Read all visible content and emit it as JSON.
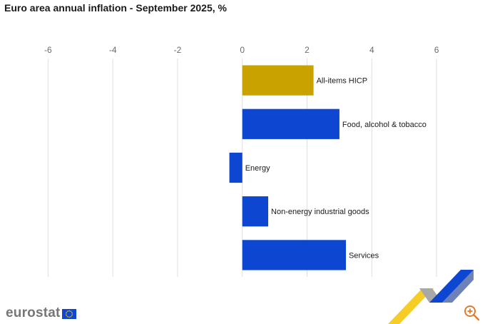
{
  "title": "Euro area annual inflation - September 2025, %",
  "brand": {
    "name": "eurostat",
    "flag_icon": "eu-flag-icon"
  },
  "zoom_icon": "zoom-in-icon",
  "colors": {
    "headline_bar": "#c9a200",
    "component_bar": "#0d47d1",
    "grid": "#e0e0e0",
    "deco_yellow": "#f5c400",
    "deco_blue": "#0d47d1",
    "deco_grey": "#a8a8a8",
    "zoom_icon": "#e07a30"
  },
  "chart_data": {
    "type": "bar",
    "orientation": "horizontal",
    "title": "Euro area annual inflation - September 2025, %",
    "xlabel": "",
    "ylabel": "",
    "xlim": [
      -7,
      7.1
    ],
    "x_ticks": [
      -6,
      -4,
      -2,
      0,
      2,
      4,
      6
    ],
    "x_tick_labels": [
      "-6",
      "-4",
      "-2",
      "0",
      "2",
      "4",
      "6"
    ],
    "x_axis_position": "top",
    "grid": true,
    "categories": [
      "All-items HICP",
      "Food, alcohol & tobacco",
      "Energy",
      "Non-energy industrial goods",
      "Services"
    ],
    "values": [
      2.2,
      3.0,
      -0.4,
      0.8,
      3.2
    ],
    "bar_colors": [
      "#c9a200",
      "#0d47d1",
      "#0d47d1",
      "#0d47d1",
      "#0d47d1"
    ]
  }
}
